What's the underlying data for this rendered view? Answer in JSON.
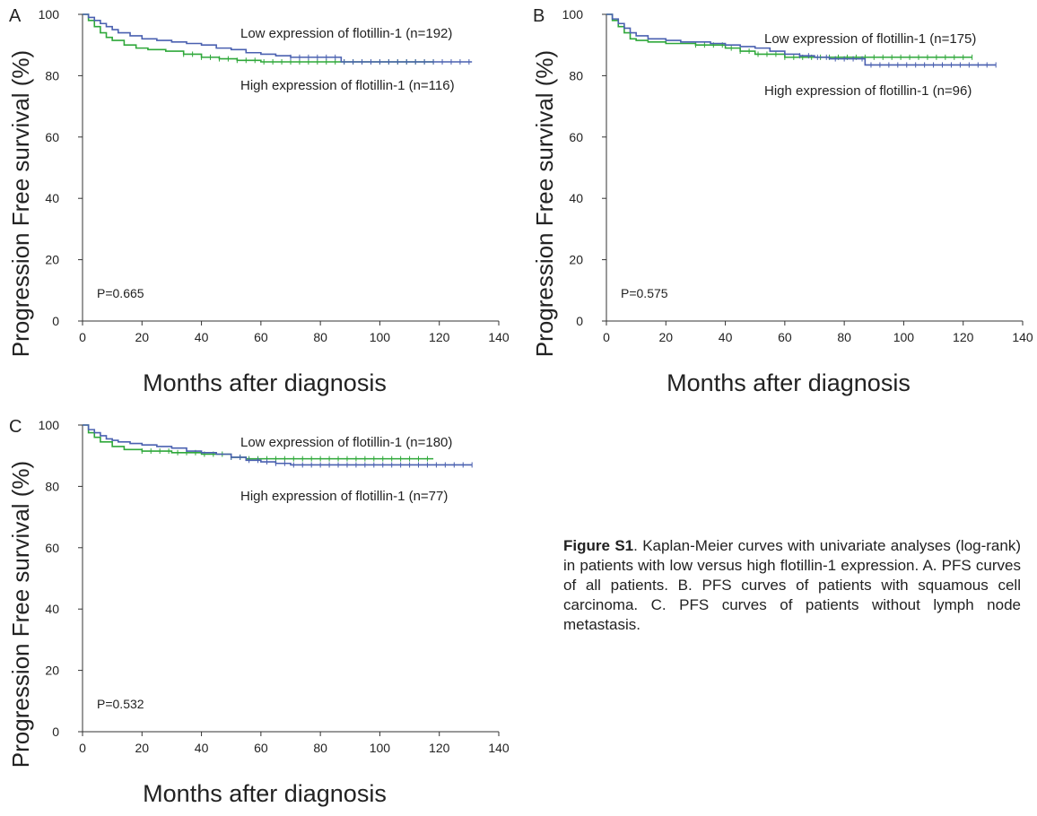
{
  "colors": {
    "low": "#4a60b0",
    "high": "#2fa83a",
    "axis": "#333333",
    "text": "#222222"
  },
  "caption": {
    "label": "Figure S1",
    "text": ". Kaplan-Meier curves with univariate analyses (log-rank) in patients with low versus high flotillin-1 expression. A. PFS curves of all patients. B. PFS curves of patients with squamous cell carcinoma. C. PFS curves of patients without lymph node metastasis."
  },
  "chart_data": [
    {
      "panel": "A",
      "type": "line",
      "subtype": "kaplan-meier step",
      "xlabel": "Months after diagnosis",
      "ylabel": "Progression Free survival (%)",
      "xlim": [
        0,
        140
      ],
      "ylim": [
        0,
        100
      ],
      "xticks": [
        0,
        20,
        40,
        60,
        80,
        100,
        120,
        140
      ],
      "yticks": [
        0,
        20,
        40,
        60,
        80,
        100
      ],
      "grid": false,
      "annotation": "P=0.665",
      "series": [
        {
          "name": "Low expression of flotillin-1 (n=192)",
          "color": "#4a60b0",
          "x": [
            0,
            2,
            4,
            6,
            8,
            10,
            12,
            16,
            20,
            25,
            30,
            35,
            40,
            45,
            50,
            55,
            60,
            65,
            70,
            75,
            80,
            85,
            87,
            131
          ],
          "y": [
            100,
            99,
            98,
            97,
            96,
            95,
            94,
            93,
            92,
            91.5,
            91,
            90.5,
            90,
            89,
            88.5,
            87.5,
            87,
            86.5,
            86,
            86,
            86,
            86,
            84.5,
            84.5
          ]
        },
        {
          "name": "High expression of flotillin-1 (n=116)",
          "color": "#2fa83a",
          "x": [
            0,
            2,
            4,
            6,
            8,
            10,
            14,
            18,
            22,
            28,
            34,
            40,
            46,
            52,
            60,
            118
          ],
          "y": [
            100,
            98,
            96,
            94,
            92.5,
            91.5,
            90,
            89,
            88.5,
            88,
            87,
            86,
            85.5,
            85,
            84.5,
            84.5
          ]
        }
      ]
    },
    {
      "panel": "B",
      "type": "line",
      "subtype": "kaplan-meier step",
      "xlabel": "Months after diagnosis",
      "ylabel": "Progression Free survival (%)",
      "xlim": [
        0,
        140
      ],
      "ylim": [
        0,
        100
      ],
      "xticks": [
        0,
        20,
        40,
        60,
        80,
        100,
        120,
        140
      ],
      "yticks": [
        0,
        20,
        40,
        60,
        80,
        100
      ],
      "grid": false,
      "annotation": "P=0.575",
      "series": [
        {
          "name": "Low expression of flotillin-1 (n=175)",
          "color": "#4a60b0",
          "x": [
            0,
            2,
            4,
            6,
            8,
            10,
            14,
            20,
            25,
            30,
            35,
            40,
            45,
            50,
            55,
            60,
            65,
            70,
            75,
            80,
            87,
            131
          ],
          "y": [
            100,
            98.5,
            97,
            95.5,
            94,
            93,
            92,
            91.5,
            91,
            91,
            90.5,
            90,
            89.5,
            89,
            88,
            87,
            86.5,
            86,
            85.5,
            85.5,
            83.5,
            83.5
          ]
        },
        {
          "name": "High expression of flotillin-1 (n=96)",
          "color": "#2fa83a",
          "x": [
            0,
            2,
            4,
            6,
            8,
            10,
            14,
            20,
            30,
            40,
            45,
            50,
            60,
            123
          ],
          "y": [
            100,
            98,
            96,
            94,
            92,
            91.5,
            91,
            90.5,
            90,
            89,
            88,
            87,
            86,
            86
          ]
        }
      ]
    },
    {
      "panel": "C",
      "type": "line",
      "subtype": "kaplan-meier step",
      "xlabel": "Months after diagnosis",
      "ylabel": "Progression Free survival (%)",
      "xlim": [
        0,
        140
      ],
      "ylim": [
        0,
        100
      ],
      "xticks": [
        0,
        20,
        40,
        60,
        80,
        100,
        120,
        140
      ],
      "yticks": [
        0,
        20,
        40,
        60,
        80,
        100
      ],
      "grid": false,
      "annotation": "P=0.532",
      "series": [
        {
          "name": "Low expression of flotillin-1 (n=180)",
          "color": "#4a60b0",
          "x": [
            0,
            2,
            4,
            6,
            8,
            10,
            12,
            16,
            20,
            25,
            30,
            35,
            40,
            45,
            50,
            55,
            60,
            65,
            70,
            131
          ],
          "y": [
            100,
            98.5,
            97.5,
            96.5,
            95.5,
            95,
            94.5,
            94,
            93.5,
            93,
            92.5,
            91.5,
            91,
            90.5,
            89.5,
            88.5,
            88,
            87.5,
            87,
            87
          ]
        },
        {
          "name": "High expression of flotillin-1 (n=77)",
          "color": "#2fa83a",
          "x": [
            0,
            2,
            4,
            6,
            10,
            14,
            20,
            30,
            40,
            50,
            55,
            118
          ],
          "y": [
            100,
            97.5,
            96,
            94.5,
            93,
            92,
            91.5,
            91,
            90.5,
            89.5,
            89,
            89
          ]
        }
      ]
    }
  ]
}
